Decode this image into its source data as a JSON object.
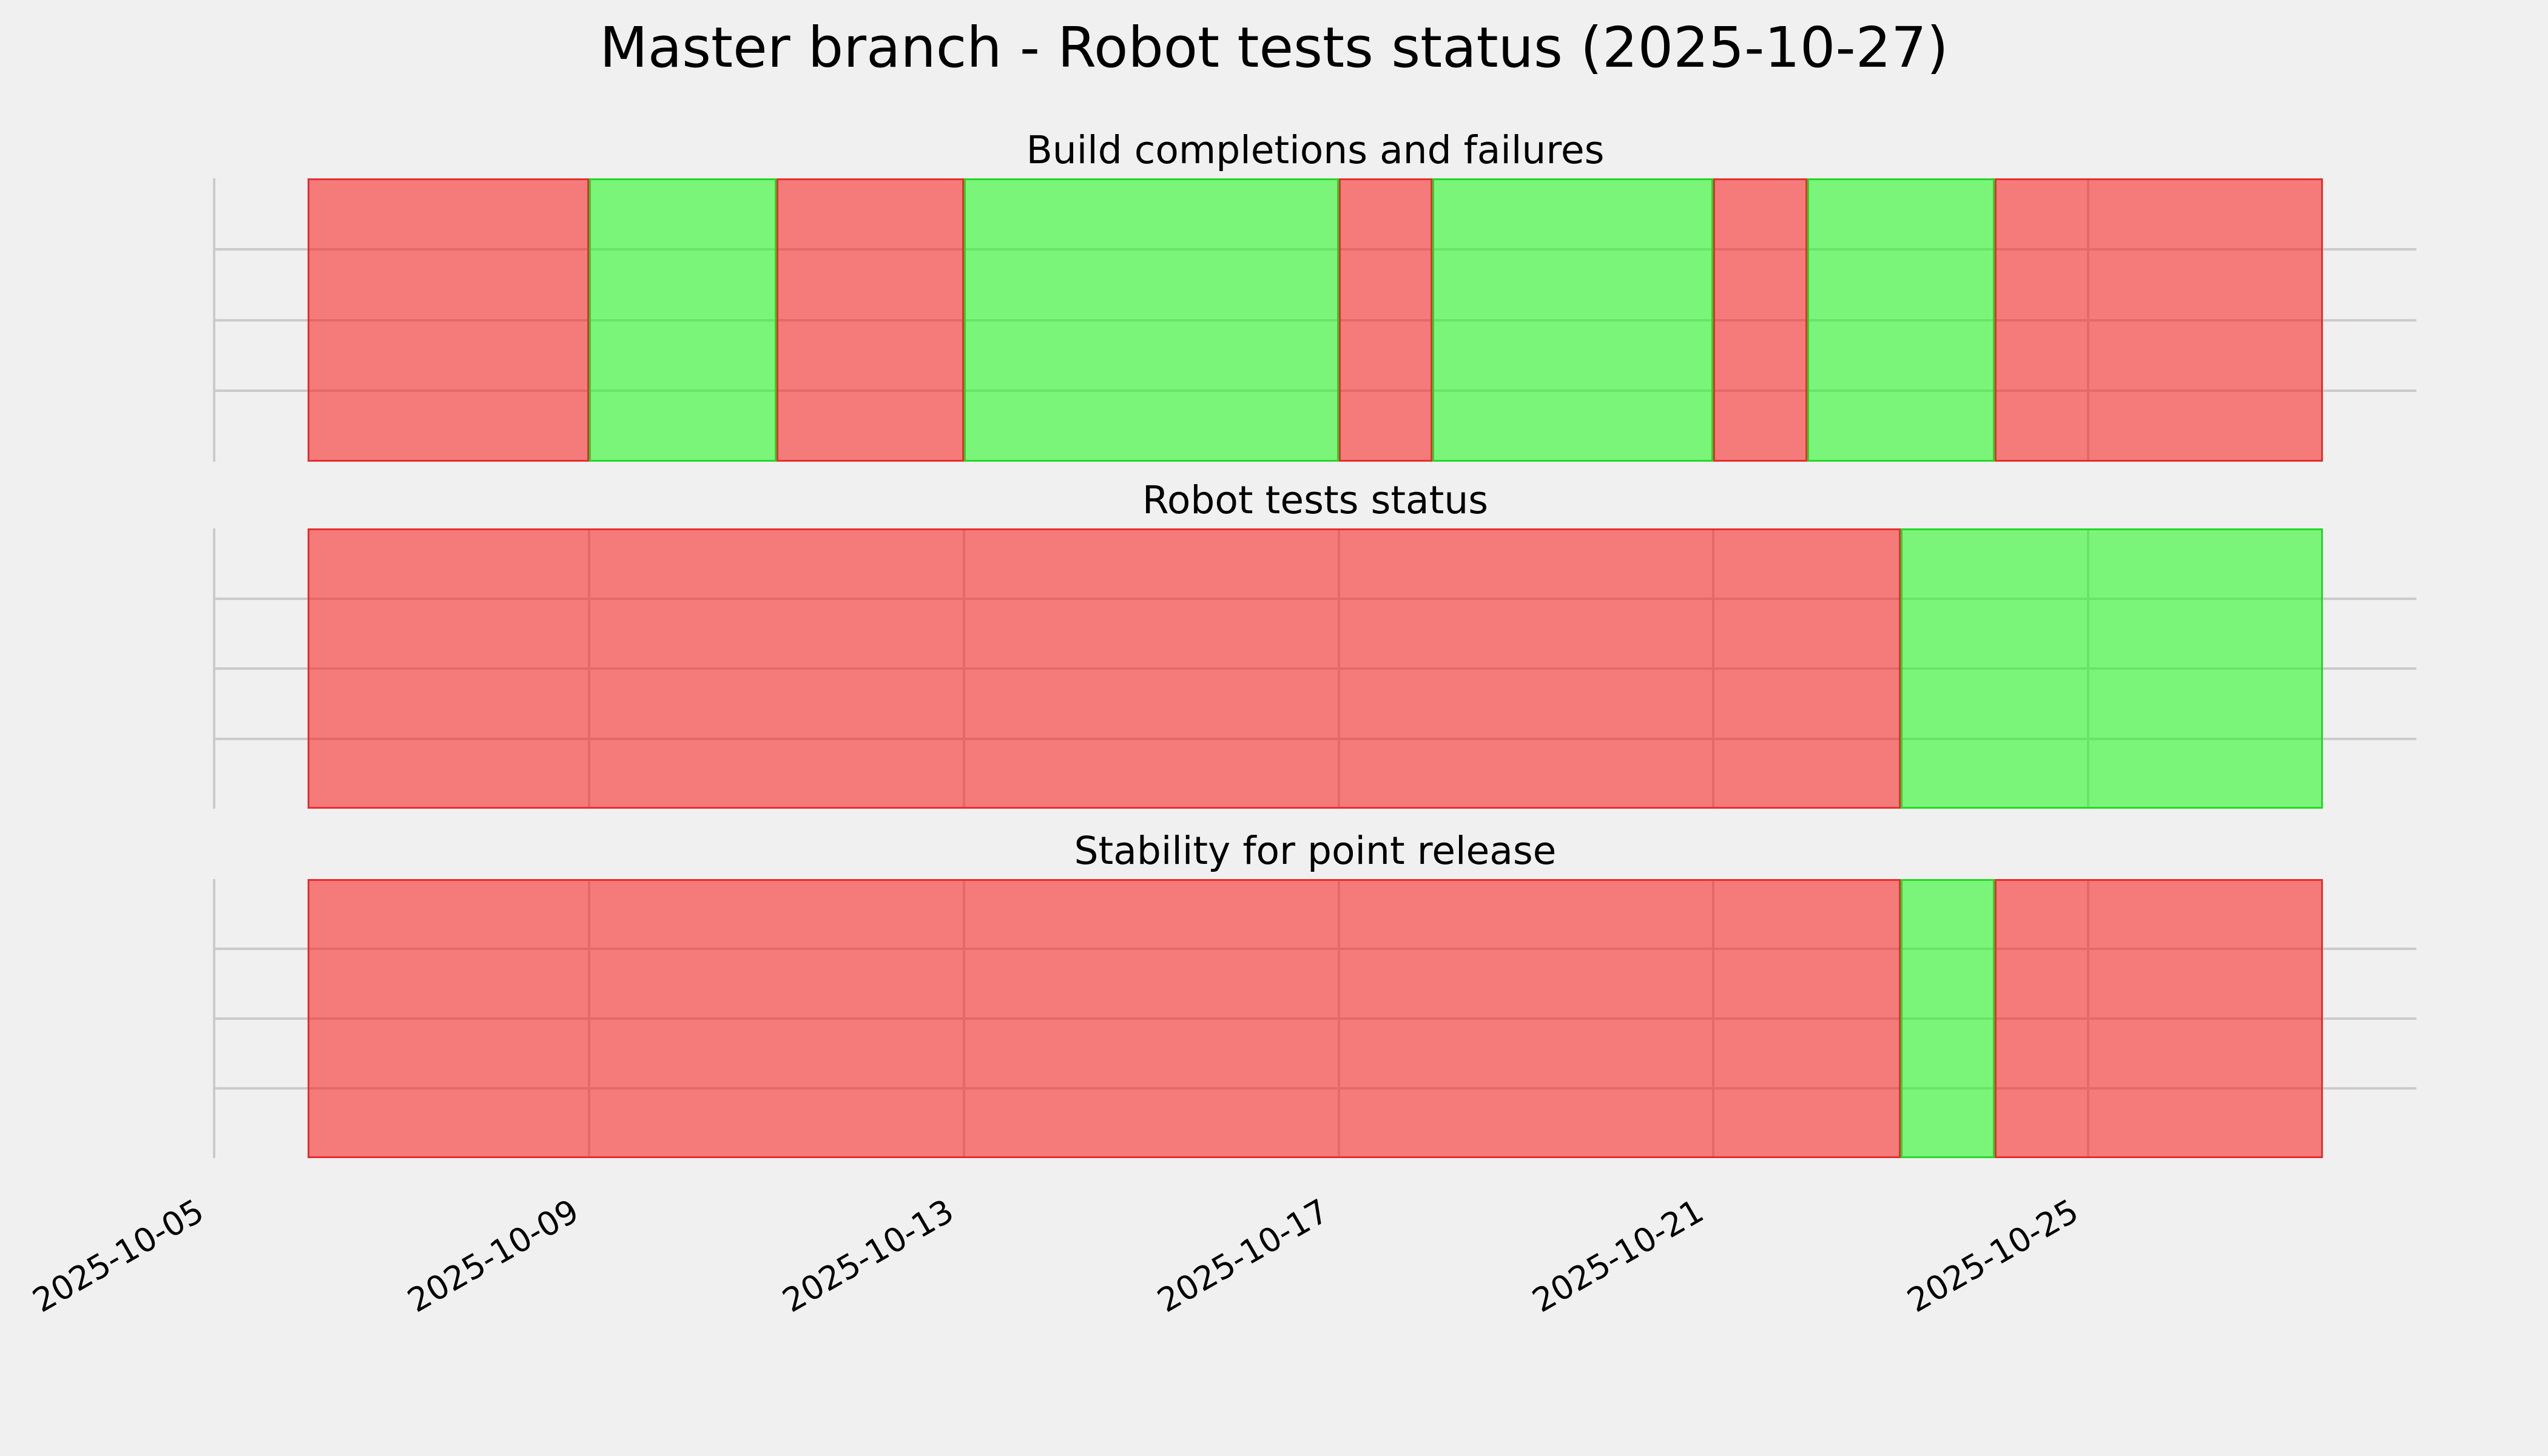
{
  "chart_data": {
    "type": "timeline_status",
    "title": "Master branch - Robot tests status (2025-10-27)",
    "background_color": "#f0f0f0",
    "grid_color": "#cbcbcb",
    "status_colors": {
      "fail_fill": "rgba(250,26,26,0.55)",
      "fail_edge": "rgba(228,36,36,0.88)",
      "ok_fill": "rgba(26,250,26,0.55)",
      "ok_edge": "rgba(30,212,30,0.92)",
      "fail_apparent": "#f67a7a",
      "ok_apparent": "#7bf47b"
    },
    "x_axis": {
      "start": "2025-10-05",
      "end": "2025-10-28T12:00",
      "grid": true,
      "tick_labels": [
        "2025-10-05",
        "2025-10-09",
        "2025-10-13",
        "2025-10-17",
        "2025-10-21",
        "2025-10-25"
      ]
    },
    "panels": [
      {
        "title": "Build completions and failures",
        "segments": [
          {
            "status": "fail",
            "from": "2025-10-06",
            "to": "2025-10-09"
          },
          {
            "status": "ok",
            "from": "2025-10-09",
            "to": "2025-10-11"
          },
          {
            "status": "fail",
            "from": "2025-10-11",
            "to": "2025-10-13"
          },
          {
            "status": "ok",
            "from": "2025-10-13",
            "to": "2025-10-17"
          },
          {
            "status": "fail",
            "from": "2025-10-17",
            "to": "2025-10-18"
          },
          {
            "status": "ok",
            "from": "2025-10-18",
            "to": "2025-10-21"
          },
          {
            "status": "fail",
            "from": "2025-10-21",
            "to": "2025-10-22"
          },
          {
            "status": "ok",
            "from": "2025-10-22",
            "to": "2025-10-24"
          },
          {
            "status": "fail",
            "from": "2025-10-24",
            "to": "2025-10-27T12:00"
          }
        ]
      },
      {
        "title": "Robot tests status",
        "segments": [
          {
            "status": "fail",
            "from": "2025-10-06",
            "to": "2025-10-23"
          },
          {
            "status": "ok",
            "from": "2025-10-23",
            "to": "2025-10-27T12:00"
          }
        ]
      },
      {
        "title": "Stability for point release",
        "segments": [
          {
            "status": "fail",
            "from": "2025-10-06",
            "to": "2025-10-23"
          },
          {
            "status": "ok",
            "from": "2025-10-23",
            "to": "2025-10-24"
          },
          {
            "status": "fail",
            "from": "2025-10-24",
            "to": "2025-10-27T12:00"
          }
        ]
      }
    ]
  }
}
